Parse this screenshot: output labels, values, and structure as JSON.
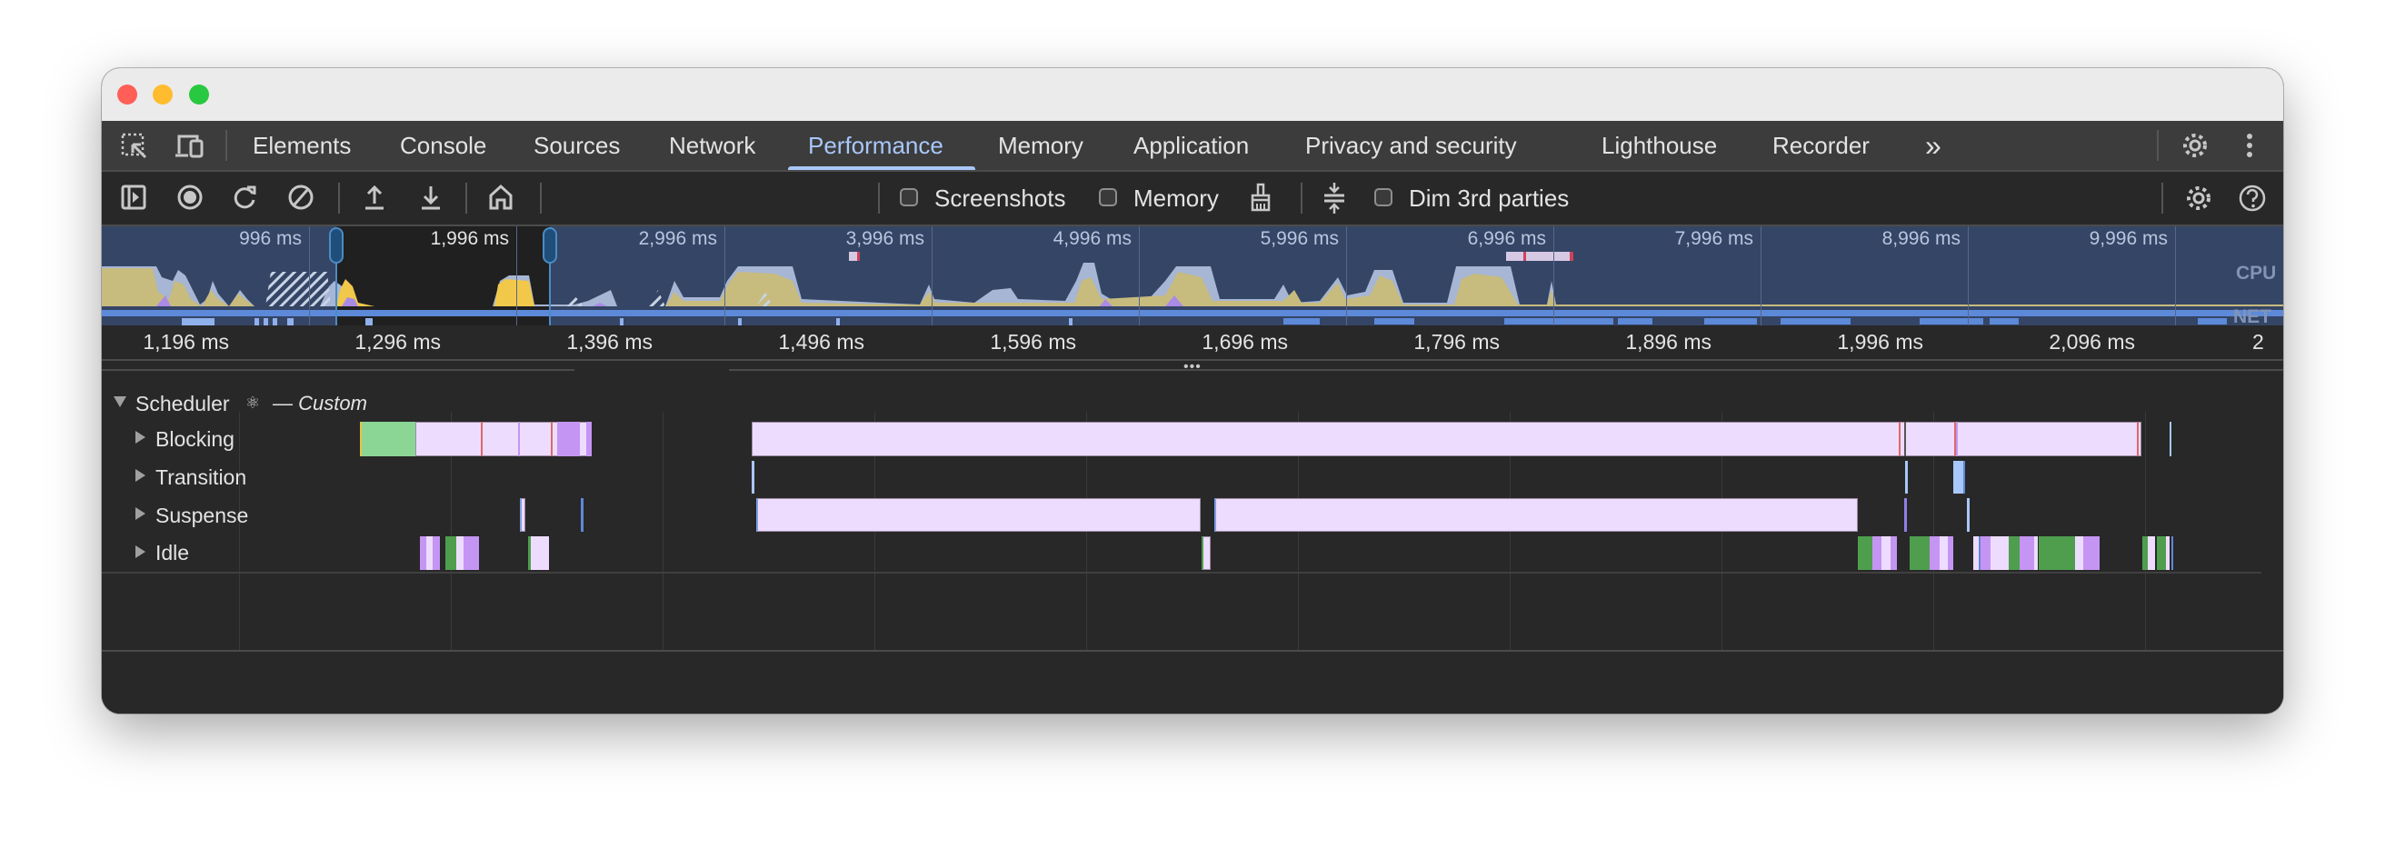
{
  "window": {
    "controls": [
      "close",
      "minimize",
      "zoom"
    ]
  },
  "tabs": {
    "items": [
      {
        "label": "Elements"
      },
      {
        "label": "Console"
      },
      {
        "label": "Sources"
      },
      {
        "label": "Network"
      },
      {
        "label": "Performance",
        "active": true
      },
      {
        "label": "Memory"
      },
      {
        "label": "Application"
      },
      {
        "label": "Privacy and security"
      },
      {
        "label": "Lighthouse"
      },
      {
        "label": "Recorder"
      }
    ],
    "more": "»"
  },
  "toolbar": {
    "screenshots_label": "Screenshots",
    "screenshots_checked": false,
    "memory_label": "Memory",
    "memory_checked": false,
    "dim_label": "Dim 3rd parties",
    "dim_checked": false
  },
  "overview": {
    "labels": [
      "996 ms",
      "1,996 ms",
      "2,996 ms",
      "3,996 ms",
      "4,996 ms",
      "5,996 ms",
      "6,996 ms",
      "7,996 ms",
      "8,996 ms",
      "9,996 ms"
    ],
    "cpu_label": "CPU",
    "net_label": "NET"
  },
  "ruler": {
    "labels": [
      "1,196 ms",
      "1,296 ms",
      "1,396 ms",
      "1,496 ms",
      "1,596 ms",
      "1,696 ms",
      "1,796 ms",
      "1,896 ms",
      "1,996 ms",
      "2,096 ms"
    ],
    "truncated": "2"
  },
  "tracks": {
    "group": "Scheduler",
    "group_suffix": "— Custom",
    "rows": [
      {
        "label": "Blocking"
      },
      {
        "label": "Transition"
      },
      {
        "label": "Suspense"
      },
      {
        "label": "Idle"
      }
    ]
  },
  "colors": {
    "accent": "#a8c7fa",
    "task_light": "#eedcfe",
    "task_purple": "#c595f3",
    "task_green": "#4e9e4e"
  }
}
